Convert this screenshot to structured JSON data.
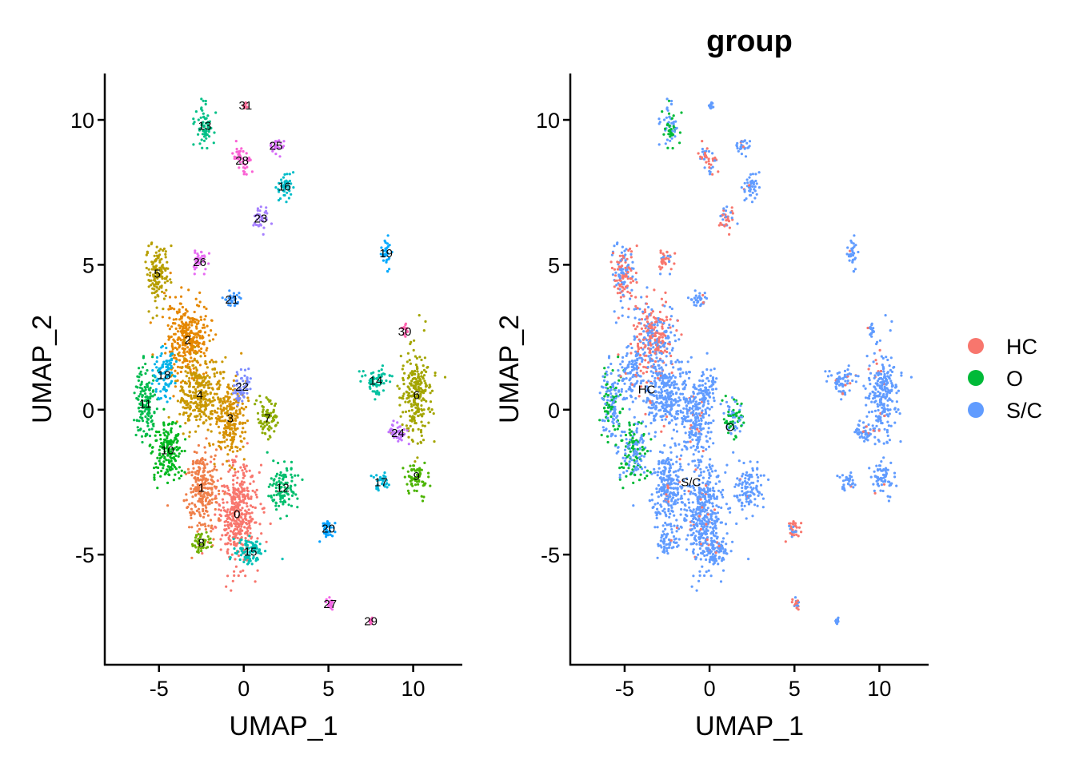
{
  "chart_data": [
    {
      "type": "scatter",
      "subtype": "umap-cluster-embedding",
      "title": "",
      "xlabel": "UMAP_1",
      "ylabel": "UMAP_2",
      "xlim": [
        -8.2,
        12.9
      ],
      "ylim": [
        -8.8,
        11.6
      ],
      "x_ticks": [
        -5,
        0,
        5,
        10
      ],
      "x_tick_labels": [
        "-5",
        "0",
        "5",
        "10"
      ],
      "y_ticks": [
        -5,
        0,
        5,
        10
      ],
      "y_tick_labels": [
        "-5",
        "0",
        "5",
        "10"
      ],
      "grid": false,
      "legend": "none",
      "cluster_labels": [
        {
          "label": "0",
          "x": -0.4,
          "y": -3.6
        },
        {
          "label": "1",
          "x": -2.5,
          "y": -2.7
        },
        {
          "label": "2",
          "x": -3.3,
          "y": 2.4
        },
        {
          "label": "3",
          "x": -0.8,
          "y": -0.3
        },
        {
          "label": "4",
          "x": -2.6,
          "y": 0.5
        },
        {
          "label": "5",
          "x": -5.1,
          "y": 4.7
        },
        {
          "label": "6",
          "x": 10.2,
          "y": 0.5
        },
        {
          "label": "7",
          "x": 1.4,
          "y": -0.3
        },
        {
          "label": "8",
          "x": -2.5,
          "y": -4.6
        },
        {
          "label": "9",
          "x": 10.2,
          "y": -2.3
        },
        {
          "label": "10",
          "x": -4.5,
          "y": -1.4
        },
        {
          "label": "11",
          "x": -5.8,
          "y": 0.2
        },
        {
          "label": "12",
          "x": 2.3,
          "y": -2.7
        },
        {
          "label": "13",
          "x": -2.3,
          "y": 9.8
        },
        {
          "label": "14",
          "x": 7.8,
          "y": 1.0
        },
        {
          "label": "15",
          "x": 0.4,
          "y": -4.9
        },
        {
          "label": "16",
          "x": 2.4,
          "y": 7.7
        },
        {
          "label": "17",
          "x": 8.1,
          "y": -2.5
        },
        {
          "label": "18",
          "x": -4.7,
          "y": 1.2
        },
        {
          "label": "19",
          "x": 8.4,
          "y": 5.4
        },
        {
          "label": "20",
          "x": 5.0,
          "y": -4.1
        },
        {
          "label": "21",
          "x": -0.7,
          "y": 3.8
        },
        {
          "label": "22",
          "x": -0.1,
          "y": 0.8
        },
        {
          "label": "23",
          "x": 1.0,
          "y": 6.6
        },
        {
          "label": "24",
          "x": 9.1,
          "y": -0.8
        },
        {
          "label": "25",
          "x": 1.9,
          "y": 9.1
        },
        {
          "label": "26",
          "x": -2.6,
          "y": 5.1
        },
        {
          "label": "27",
          "x": 5.1,
          "y": -6.7
        },
        {
          "label": "28",
          "x": -0.1,
          "y": 8.6
        },
        {
          "label": "29",
          "x": 7.5,
          "y": -7.3
        },
        {
          "label": "30",
          "x": 9.5,
          "y": 2.7
        },
        {
          "label": "31",
          "x": 0.1,
          "y": 10.5
        }
      ],
      "palette": [
        "#F8766D",
        "#EF7F49",
        "#E58700",
        "#D69100",
        "#C99800",
        "#B79F00",
        "#A3A500",
        "#8DAB00",
        "#70B000",
        "#4BB400",
        "#00B81F",
        "#00BB4E",
        "#00BE6C",
        "#00C087",
        "#00C19F",
        "#00C0B5",
        "#00BDC9",
        "#00B8DA",
        "#00B2E8",
        "#00A9FF",
        "#00A0FF",
        "#3D97FF",
        "#7C8CFF",
        "#A680FF",
        "#C274FF",
        "#D66CF8",
        "#E76BF3",
        "#F266E5",
        "#FA62D4",
        "#FF61C3",
        "#FF63AE",
        "#FD6A96"
      ]
    },
    {
      "type": "scatter",
      "subtype": "umap-group-embedding",
      "title": "group",
      "xlabel": "UMAP_1",
      "ylabel": "UMAP_2",
      "xlim": [
        -8.2,
        12.9
      ],
      "ylim": [
        -8.8,
        11.6
      ],
      "x_ticks": [
        -5,
        0,
        5,
        10
      ],
      "x_tick_labels": [
        "-5",
        "0",
        "5",
        "10"
      ],
      "y_ticks": [
        -5,
        0,
        5,
        10
      ],
      "y_tick_labels": [
        "-5",
        "0",
        "5",
        "10"
      ],
      "grid": false,
      "legend": "right",
      "series": [
        {
          "name": "HC",
          "color": "#F8766D"
        },
        {
          "name": "O",
          "color": "#00BA38"
        },
        {
          "name": "S/C",
          "color": "#619CFF"
        }
      ],
      "group_labels": [
        {
          "label": "HC",
          "x": -3.7,
          "y": 0.7
        },
        {
          "label": "O",
          "x": 1.2,
          "y": -0.6
        },
        {
          "label": "S/C",
          "x": -1.1,
          "y": -2.5
        }
      ]
    }
  ]
}
